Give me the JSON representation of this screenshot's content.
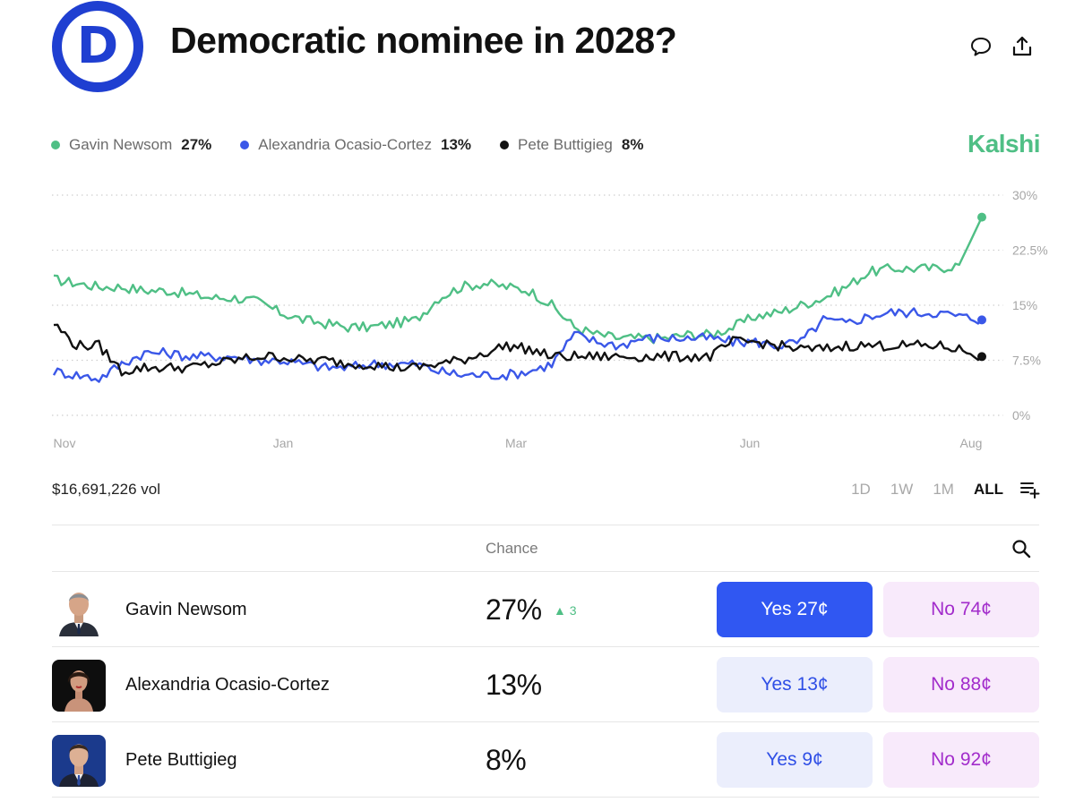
{
  "header": {
    "logo_letter": "D",
    "title": "Democratic nominee in 2028?",
    "icons": [
      "comment-icon",
      "share-icon"
    ]
  },
  "legend": [
    {
      "name": "Gavin Newsom",
      "value": "27%",
      "color": "#4fbf85"
    },
    {
      "name": "Alexandria Ocasio-Cortez",
      "value": "13%",
      "color": "#3a57e8"
    },
    {
      "name": "Pete Buttigieg",
      "value": "8%",
      "color": "#111111"
    }
  ],
  "brand": "Kalshi",
  "chart_data": {
    "type": "line",
    "x_labels": [
      "Nov",
      "Jan",
      "Mar",
      "Jun",
      "Aug"
    ],
    "y_ticks": [
      "30%",
      "22.5%",
      "15%",
      "7.5%",
      "0%"
    ],
    "ylim": [
      0,
      30
    ],
    "grid": "dotted horizontal",
    "y_axis_position": "right",
    "series": [
      {
        "name": "Gavin Newsom",
        "color": "#4fbf85",
        "values": [
          18.5,
          18,
          17.5,
          17.5,
          17,
          17,
          16.5,
          16,
          16,
          15.5,
          14,
          13,
          12.5,
          12,
          12,
          12.5,
          13,
          16,
          17.5,
          18,
          17.5,
          17,
          15,
          12,
          11,
          10.5,
          10.5,
          10.5,
          11,
          11,
          12,
          13.5,
          14,
          15,
          16,
          17.5,
          19.5,
          20,
          20,
          20,
          20.5,
          27
        ]
      },
      {
        "name": "Alexandria Ocasio-Cortez",
        "color": "#3a57e8",
        "values": [
          6,
          5.5,
          5,
          7,
          8.5,
          8.5,
          8,
          8,
          8,
          7.5,
          7.5,
          7,
          6.5,
          6.5,
          7,
          7,
          7,
          6,
          5.5,
          5.5,
          5.5,
          6,
          7,
          11,
          10,
          9.5,
          10.5,
          10.5,
          10.5,
          10.5,
          10,
          10,
          9.5,
          10,
          13,
          12.5,
          13.5,
          14,
          14,
          14,
          13.5,
          13
        ]
      },
      {
        "name": "Pete Buttigieg",
        "color": "#111111",
        "values": [
          12.5,
          9.5,
          9.5,
          6,
          6.5,
          6.5,
          6.5,
          7,
          7.5,
          8,
          8,
          7.5,
          7.5,
          7,
          7,
          6.5,
          6.5,
          7,
          7.5,
          8.5,
          9.5,
          9,
          8,
          8,
          8,
          8,
          8,
          8,
          8,
          8,
          10,
          10,
          9.5,
          9,
          9,
          9.5,
          9.5,
          9.5,
          9.5,
          9.5,
          9,
          8
        ]
      }
    ]
  },
  "volume": "$16,691,226 vol",
  "ranges": [
    "1D",
    "1W",
    "1M",
    "ALL"
  ],
  "active_range": "ALL",
  "table": {
    "chance_header": "Chance",
    "rows": [
      {
        "name": "Gavin Newsom",
        "chance": "27%",
        "change": "3",
        "yes": "Yes 27¢",
        "no": "No 74¢"
      },
      {
        "name": "Alexandria Ocasio-Cortez",
        "chance": "13%",
        "change": "",
        "yes": "Yes 13¢",
        "no": "No 88¢"
      },
      {
        "name": "Pete Buttigieg",
        "chance": "8%",
        "change": "",
        "yes": "Yes 9¢",
        "no": "No 92¢"
      }
    ]
  }
}
